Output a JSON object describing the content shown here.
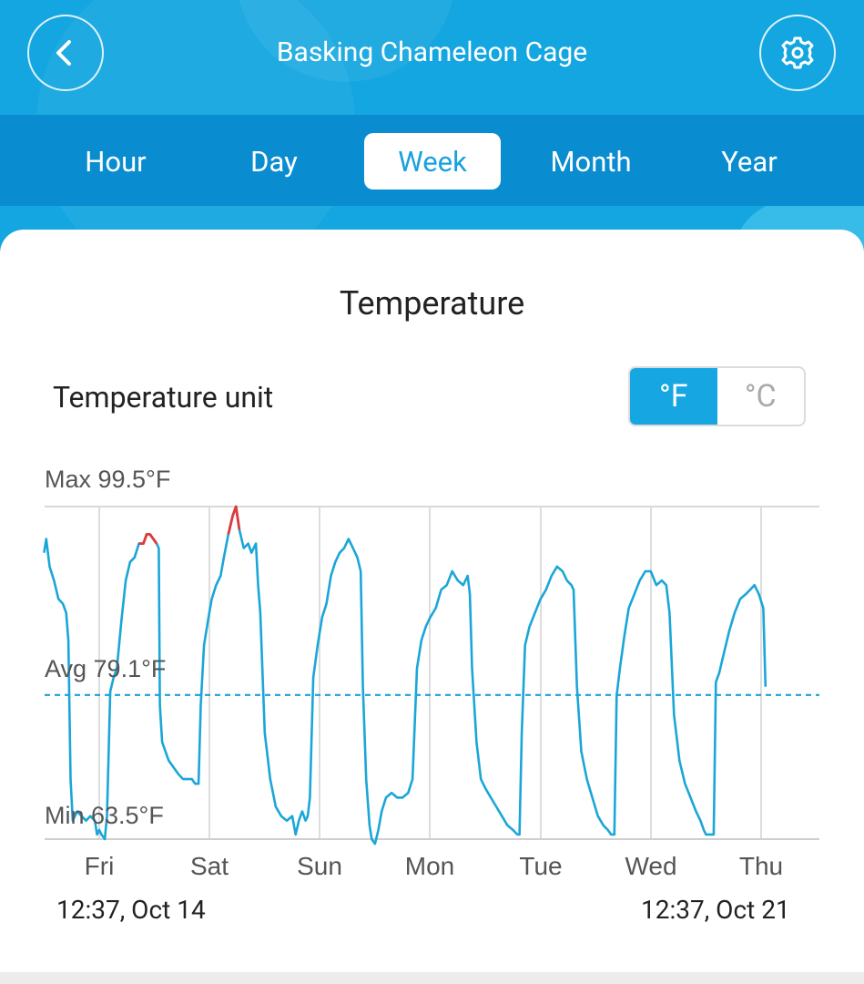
{
  "header": {
    "title": "Basking Chameleon Cage",
    "back_icon": "chevron-left-icon",
    "settings_icon": "gear-icon",
    "accent": "#14a6e0"
  },
  "tabs": [
    {
      "label": "Hour",
      "active": false
    },
    {
      "label": "Day",
      "active": false
    },
    {
      "label": "Week",
      "active": true
    },
    {
      "label": "Month",
      "active": false
    },
    {
      "label": "Year",
      "active": false
    }
  ],
  "card": {
    "title": "Temperature",
    "unit_label": "Temperature unit",
    "unit_options": [
      "°F",
      "°C"
    ],
    "unit_selected": "°F",
    "range_start": "12:37,  Oct 14",
    "range_end": "12:37,  Oct 21"
  },
  "chart_data": {
    "type": "line",
    "max_label": "Max 99.5°F",
    "avg_label": "Avg 79.1°F",
    "min_label": "Min 63.5°F",
    "max": 99.5,
    "avg": 79.1,
    "min": 63.5,
    "x_ticks": [
      "Fri",
      "Sat",
      "Sun",
      "Mon",
      "Tue",
      "Wed",
      "Thu"
    ],
    "line_color": "#1aa6d8",
    "high_color": "#e03a3a",
    "grid": true,
    "series": [
      {
        "values": [
          [
            0.0,
            94.5
          ],
          [
            0.02,
            96.0
          ],
          [
            0.05,
            93.0
          ],
          [
            0.09,
            91.5
          ],
          [
            0.13,
            89.5
          ],
          [
            0.17,
            89.0
          ],
          [
            0.2,
            88.0
          ],
          [
            0.22,
            85.0
          ],
          [
            0.24,
            70.0
          ],
          [
            0.26,
            65.5
          ],
          [
            0.3,
            66.5
          ],
          [
            0.34,
            66.0
          ],
          [
            0.38,
            65.5
          ],
          [
            0.42,
            66.0
          ],
          [
            0.46,
            65.5
          ],
          [
            0.48,
            64.0
          ],
          [
            0.5,
            64.5
          ],
          [
            0.52,
            64.0
          ],
          [
            0.55,
            63.5
          ],
          [
            0.57,
            66.0
          ],
          [
            0.6,
            79.5
          ],
          [
            0.63,
            81.0
          ],
          [
            0.66,
            82.0
          ],
          [
            0.7,
            87.0
          ],
          [
            0.74,
            91.5
          ],
          [
            0.78,
            93.5
          ],
          [
            0.82,
            94.0
          ],
          [
            0.86,
            95.5
          ],
          [
            0.9,
            95.5
          ],
          [
            0.93,
            96.5
          ],
          [
            0.96,
            96.5
          ],
          [
            0.99,
            96.0
          ],
          [
            1.02,
            95.5
          ],
          [
            1.04,
            95.0
          ],
          [
            1.05,
            78.0
          ],
          [
            1.07,
            74.0
          ],
          [
            1.1,
            73.0
          ],
          [
            1.13,
            72.0
          ],
          [
            1.16,
            71.5
          ],
          [
            1.19,
            71.0
          ],
          [
            1.22,
            70.5
          ],
          [
            1.26,
            70.0
          ],
          [
            1.3,
            70.0
          ],
          [
            1.34,
            70.0
          ],
          [
            1.37,
            69.5
          ],
          [
            1.4,
            69.5
          ],
          [
            1.42,
            78.0
          ],
          [
            1.45,
            84.5
          ],
          [
            1.49,
            87.5
          ],
          [
            1.52,
            89.5
          ],
          [
            1.56,
            91.0
          ],
          [
            1.6,
            92.0
          ],
          [
            1.63,
            94.0
          ],
          [
            1.67,
            96.5
          ],
          [
            1.71,
            98.5
          ],
          [
            1.74,
            99.5
          ],
          [
            1.77,
            97.0
          ],
          [
            1.81,
            95.0
          ],
          [
            1.85,
            95.5
          ],
          [
            1.88,
            94.5
          ],
          [
            1.92,
            95.5
          ],
          [
            1.94,
            91.0
          ],
          [
            1.96,
            88.0
          ],
          [
            2.0,
            75.0
          ],
          [
            2.05,
            70.0
          ],
          [
            2.1,
            67.0
          ],
          [
            2.15,
            66.0
          ],
          [
            2.2,
            65.5
          ],
          [
            2.25,
            66.0
          ],
          [
            2.28,
            64.0
          ],
          [
            2.31,
            65.5
          ],
          [
            2.34,
            66.5
          ],
          [
            2.37,
            65.5
          ],
          [
            2.39,
            66.0
          ],
          [
            2.41,
            68.0
          ],
          [
            2.44,
            81.0
          ],
          [
            2.48,
            84.5
          ],
          [
            2.52,
            87.5
          ],
          [
            2.56,
            89.0
          ],
          [
            2.6,
            92.0
          ],
          [
            2.64,
            93.5
          ],
          [
            2.68,
            94.5
          ],
          [
            2.72,
            95.0
          ],
          [
            2.76,
            96.0
          ],
          [
            2.8,
            95.0
          ],
          [
            2.84,
            94.0
          ],
          [
            2.87,
            92.5
          ],
          [
            2.89,
            80.0
          ],
          [
            2.92,
            70.0
          ],
          [
            2.95,
            65.0
          ],
          [
            2.97,
            63.5
          ],
          [
            3.0,
            63.0
          ],
          [
            3.03,
            64.5
          ],
          [
            3.06,
            66.5
          ],
          [
            3.1,
            68.0
          ],
          [
            3.15,
            68.5
          ],
          [
            3.2,
            68.0
          ],
          [
            3.25,
            68.0
          ],
          [
            3.3,
            68.5
          ],
          [
            3.34,
            70.0
          ],
          [
            3.38,
            82.0
          ],
          [
            3.42,
            85.0
          ],
          [
            3.46,
            86.5
          ],
          [
            3.5,
            87.5
          ],
          [
            3.55,
            88.5
          ],
          [
            3.6,
            90.5
          ],
          [
            3.65,
            91.0
          ],
          [
            3.7,
            92.5
          ],
          [
            3.75,
            91.5
          ],
          [
            3.8,
            91.0
          ],
          [
            3.84,
            92.0
          ],
          [
            3.86,
            90.0
          ],
          [
            3.88,
            82.0
          ],
          [
            3.92,
            74.0
          ],
          [
            3.96,
            70.0
          ],
          [
            4.0,
            69.0
          ],
          [
            4.05,
            68.0
          ],
          [
            4.1,
            67.0
          ],
          [
            4.15,
            66.0
          ],
          [
            4.2,
            65.0
          ],
          [
            4.25,
            64.5
          ],
          [
            4.29,
            64.0
          ],
          [
            4.31,
            64.0
          ],
          [
            4.33,
            75.0
          ],
          [
            4.36,
            84.5
          ],
          [
            4.4,
            86.5
          ],
          [
            4.45,
            88.0
          ],
          [
            4.5,
            89.5
          ],
          [
            4.55,
            90.5
          ],
          [
            4.6,
            92.0
          ],
          [
            4.65,
            93.0
          ],
          [
            4.7,
            92.5
          ],
          [
            4.74,
            91.5
          ],
          [
            4.78,
            91.0
          ],
          [
            4.8,
            90.5
          ],
          [
            4.83,
            80.0
          ],
          [
            4.87,
            73.0
          ],
          [
            4.92,
            70.0
          ],
          [
            4.97,
            68.0
          ],
          [
            5.02,
            66.0
          ],
          [
            5.07,
            65.0
          ],
          [
            5.11,
            64.5
          ],
          [
            5.14,
            64.0
          ],
          [
            5.17,
            64.0
          ],
          [
            5.19,
            79.0
          ],
          [
            5.22,
            82.0
          ],
          [
            5.26,
            85.5
          ],
          [
            5.3,
            88.5
          ],
          [
            5.35,
            90.0
          ],
          [
            5.4,
            91.5
          ],
          [
            5.45,
            92.5
          ],
          [
            5.5,
            92.5
          ],
          [
            5.55,
            91.0
          ],
          [
            5.6,
            91.5
          ],
          [
            5.64,
            91.0
          ],
          [
            5.67,
            88.0
          ],
          [
            5.71,
            77.0
          ],
          [
            5.76,
            72.0
          ],
          [
            5.81,
            69.5
          ],
          [
            5.86,
            68.0
          ],
          [
            5.91,
            66.5
          ],
          [
            5.95,
            65.5
          ],
          [
            5.98,
            64.5
          ],
          [
            6.0,
            64.0
          ],
          [
            6.04,
            64.0
          ],
          [
            6.07,
            64.0
          ],
          [
            6.09,
            80.5
          ],
          [
            6.12,
            81.5
          ],
          [
            6.16,
            83.5
          ],
          [
            6.21,
            86.0
          ],
          [
            6.26,
            88.0
          ],
          [
            6.31,
            89.5
          ],
          [
            6.36,
            90.0
          ],
          [
            6.4,
            90.5
          ],
          [
            6.44,
            91.0
          ],
          [
            6.48,
            90.0
          ],
          [
            6.52,
            88.5
          ],
          [
            6.54,
            80.0
          ]
        ]
      }
    ]
  }
}
